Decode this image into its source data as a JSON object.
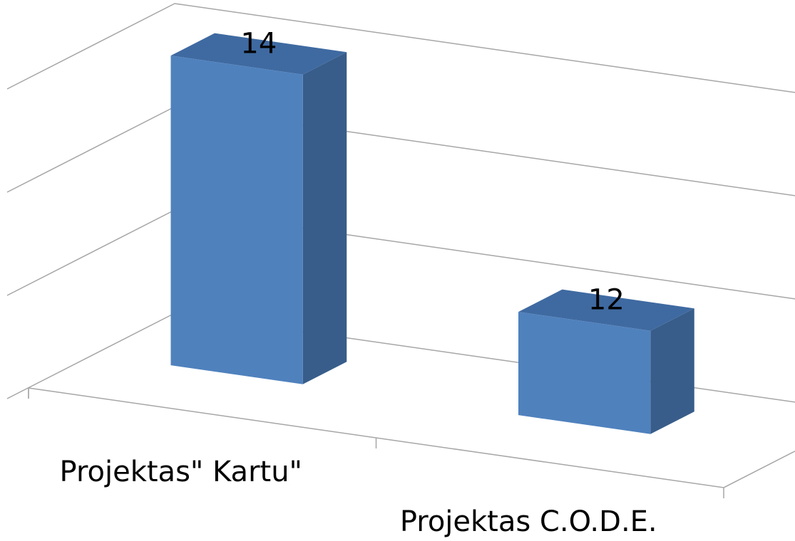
{
  "chart_data": {
    "type": "bar3d",
    "categories": [
      "Projektas\" Kartu\"",
      "Projektas C.O.D.E."
    ],
    "values": [
      14,
      12
    ],
    "color": "#4f81bd",
    "ylim": [
      11,
      14
    ],
    "yticks": [
      11,
      12,
      13,
      14
    ],
    "grid": true
  }
}
